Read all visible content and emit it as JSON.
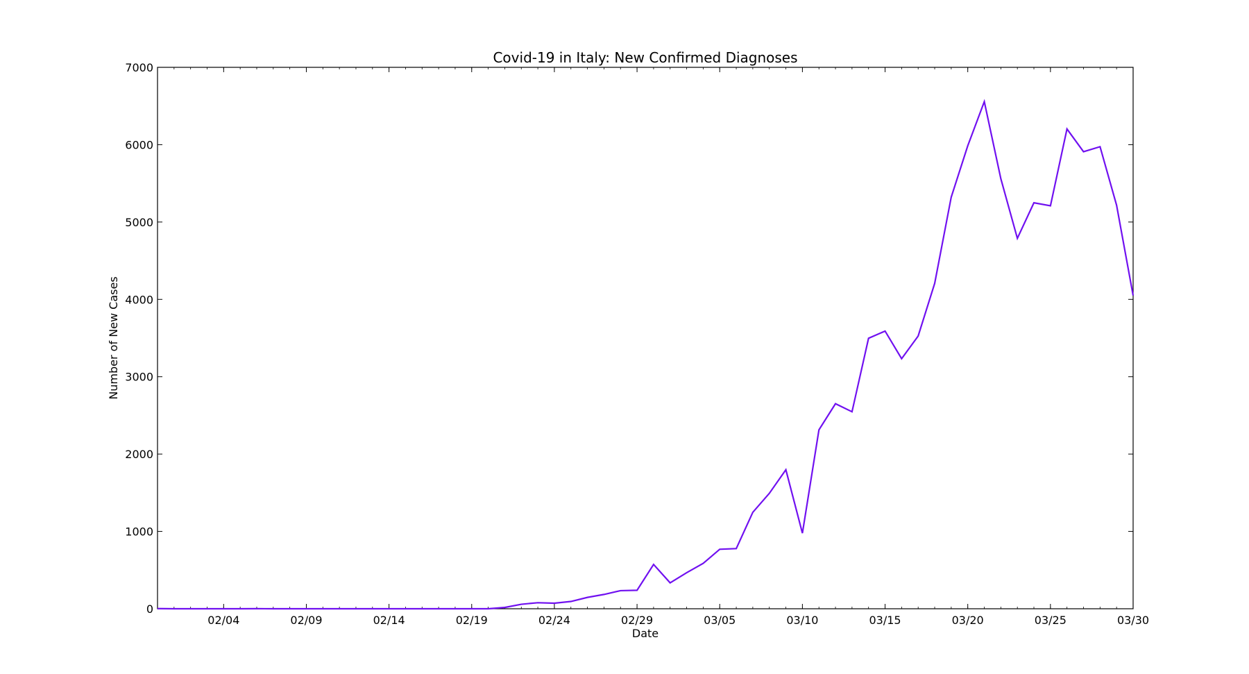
{
  "chart_data": {
    "type": "line",
    "title": "Covid-19 in Italy: New Confirmed Diagnoses",
    "xlabel": "Date",
    "ylabel": "Number of New Cases",
    "x_start": "2020-01-31",
    "x_range": [
      "2020-01-31",
      "2020-03-30"
    ],
    "ylim": [
      0,
      7000
    ],
    "yticks": [
      0,
      1000,
      2000,
      3000,
      4000,
      5000,
      6000,
      7000
    ],
    "ytick_labels": [
      "0",
      "1000",
      "2000",
      "3000",
      "4000",
      "5000",
      "6000",
      "7000"
    ],
    "xticks": [
      {
        "date": "2020-02-04",
        "label": "02/04"
      },
      {
        "date": "2020-02-09",
        "label": "02/09"
      },
      {
        "date": "2020-02-14",
        "label": "02/14"
      },
      {
        "date": "2020-02-19",
        "label": "02/19"
      },
      {
        "date": "2020-02-24",
        "label": "02/24"
      },
      {
        "date": "2020-02-29",
        "label": "02/29"
      },
      {
        "date": "2020-03-05",
        "label": "03/05"
      },
      {
        "date": "2020-03-10",
        "label": "03/10"
      },
      {
        "date": "2020-03-15",
        "label": "03/15"
      },
      {
        "date": "2020-03-20",
        "label": "03/20"
      },
      {
        "date": "2020-03-25",
        "label": "03/25"
      },
      {
        "date": "2020-03-30",
        "label": "03/30"
      }
    ],
    "grid": false,
    "color": "#7010f0",
    "series": [
      {
        "x": [
          "2020-01-31",
          "2020-02-01",
          "2020-02-02",
          "2020-02-03",
          "2020-02-04",
          "2020-02-05",
          "2020-02-06",
          "2020-02-07",
          "2020-02-08",
          "2020-02-09",
          "2020-02-10",
          "2020-02-11",
          "2020-02-12",
          "2020-02-13",
          "2020-02-14",
          "2020-02-15",
          "2020-02-16",
          "2020-02-17",
          "2020-02-18",
          "2020-02-19",
          "2020-02-20",
          "2020-02-21",
          "2020-02-22",
          "2020-02-23",
          "2020-02-24",
          "2020-02-25",
          "2020-02-26",
          "2020-02-27",
          "2020-02-28",
          "2020-02-29",
          "2020-03-01",
          "2020-03-02",
          "2020-03-03",
          "2020-03-04",
          "2020-03-05",
          "2020-03-06",
          "2020-03-07",
          "2020-03-08",
          "2020-03-09",
          "2020-03-10",
          "2020-03-11",
          "2020-03-12",
          "2020-03-13",
          "2020-03-14",
          "2020-03-15",
          "2020-03-16",
          "2020-03-17",
          "2020-03-18",
          "2020-03-19",
          "2020-03-20",
          "2020-03-21",
          "2020-03-22",
          "2020-03-23",
          "2020-03-24",
          "2020-03-25",
          "2020-03-26",
          "2020-03-27",
          "2020-03-28",
          "2020-03-29",
          "2020-03-30"
        ],
        "y": [
          2,
          0,
          0,
          0,
          0,
          0,
          1,
          0,
          0,
          0,
          0,
          0,
          0,
          0,
          0,
          0,
          0,
          0,
          0,
          0,
          0,
          17,
          58,
          78,
          72,
          94,
          147,
          185,
          234,
          239,
          573,
          335,
          466,
          587,
          769,
          778,
          1247,
          1492,
          1797,
          977,
          2313,
          2651,
          2547,
          3497,
          3590,
          3233,
          3526,
          4207,
          5322,
          5986,
          6557,
          5560,
          4789,
          5249,
          5210,
          6203,
          5909,
          5974,
          5217,
          4050
        ]
      }
    ]
  }
}
